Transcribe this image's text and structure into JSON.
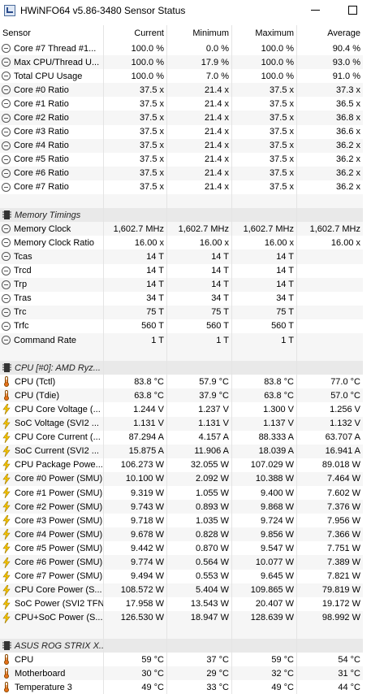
{
  "window": {
    "title": "HWiNFO64 v5.86-3480 Sensor Status"
  },
  "columns": [
    "Sensor",
    "Current",
    "Minimum",
    "Maximum",
    "Average"
  ],
  "rows": [
    {
      "type": "item",
      "icon": "clock-icon",
      "name": "Core #7 Thread #1...",
      "cur": "100.0 %",
      "min": "0.0 %",
      "max": "100.0 %",
      "avg": "90.4 %"
    },
    {
      "type": "item",
      "icon": "clock-icon",
      "name": "Max CPU/Thread U...",
      "cur": "100.0 %",
      "min": "17.9 %",
      "max": "100.0 %",
      "avg": "93.0 %"
    },
    {
      "type": "item",
      "icon": "clock-icon",
      "name": "Total CPU Usage",
      "cur": "100.0 %",
      "min": "7.0 %",
      "max": "100.0 %",
      "avg": "91.0 %"
    },
    {
      "type": "item",
      "icon": "clock-icon",
      "name": "Core #0 Ratio",
      "cur": "37.5 x",
      "min": "21.4 x",
      "max": "37.5 x",
      "avg": "37.3 x"
    },
    {
      "type": "item",
      "icon": "clock-icon",
      "name": "Core #1 Ratio",
      "cur": "37.5 x",
      "min": "21.4 x",
      "max": "37.5 x",
      "avg": "36.5 x"
    },
    {
      "type": "item",
      "icon": "clock-icon",
      "name": "Core #2 Ratio",
      "cur": "37.5 x",
      "min": "21.4 x",
      "max": "37.5 x",
      "avg": "36.8 x"
    },
    {
      "type": "item",
      "icon": "clock-icon",
      "name": "Core #3 Ratio",
      "cur": "37.5 x",
      "min": "21.4 x",
      "max": "37.5 x",
      "avg": "36.6 x"
    },
    {
      "type": "item",
      "icon": "clock-icon",
      "name": "Core #4 Ratio",
      "cur": "37.5 x",
      "min": "21.4 x",
      "max": "37.5 x",
      "avg": "36.2 x"
    },
    {
      "type": "item",
      "icon": "clock-icon",
      "name": "Core #5 Ratio",
      "cur": "37.5 x",
      "min": "21.4 x",
      "max": "37.5 x",
      "avg": "36.2 x"
    },
    {
      "type": "item",
      "icon": "clock-icon",
      "name": "Core #6 Ratio",
      "cur": "37.5 x",
      "min": "21.4 x",
      "max": "37.5 x",
      "avg": "36.2 x"
    },
    {
      "type": "item",
      "icon": "clock-icon",
      "name": "Core #7 Ratio",
      "cur": "37.5 x",
      "min": "21.4 x",
      "max": "37.5 x",
      "avg": "36.2 x"
    },
    {
      "type": "blank"
    },
    {
      "type": "group",
      "icon": "chip-icon",
      "name": "Memory Timings"
    },
    {
      "type": "item",
      "icon": "clock-icon",
      "name": "Memory Clock",
      "cur": "1,602.7 MHz",
      "min": "1,602.7 MHz",
      "max": "1,602.7 MHz",
      "avg": "1,602.7 MHz"
    },
    {
      "type": "item",
      "icon": "clock-icon",
      "name": "Memory Clock Ratio",
      "cur": "16.00 x",
      "min": "16.00 x",
      "max": "16.00 x",
      "avg": "16.00 x"
    },
    {
      "type": "item",
      "icon": "clock-icon",
      "name": "Tcas",
      "cur": "14 T",
      "min": "14 T",
      "max": "14 T",
      "avg": ""
    },
    {
      "type": "item",
      "icon": "clock-icon",
      "name": "Trcd",
      "cur": "14 T",
      "min": "14 T",
      "max": "14 T",
      "avg": ""
    },
    {
      "type": "item",
      "icon": "clock-icon",
      "name": "Trp",
      "cur": "14 T",
      "min": "14 T",
      "max": "14 T",
      "avg": ""
    },
    {
      "type": "item",
      "icon": "clock-icon",
      "name": "Tras",
      "cur": "34 T",
      "min": "34 T",
      "max": "34 T",
      "avg": ""
    },
    {
      "type": "item",
      "icon": "clock-icon",
      "name": "Trc",
      "cur": "75 T",
      "min": "75 T",
      "max": "75 T",
      "avg": ""
    },
    {
      "type": "item",
      "icon": "clock-icon",
      "name": "Trfc",
      "cur": "560 T",
      "min": "560 T",
      "max": "560 T",
      "avg": ""
    },
    {
      "type": "item",
      "icon": "clock-icon",
      "name": "Command Rate",
      "cur": "1 T",
      "min": "1 T",
      "max": "1 T",
      "avg": ""
    },
    {
      "type": "blank"
    },
    {
      "type": "group",
      "icon": "chip-icon",
      "name": "CPU [#0]: AMD Ryz..."
    },
    {
      "type": "item",
      "icon": "thermometer-icon",
      "name": "CPU (Tctl)",
      "cur": "83.8 °C",
      "min": "57.9 °C",
      "max": "83.8 °C",
      "avg": "77.0 °C"
    },
    {
      "type": "item",
      "icon": "thermometer-icon",
      "name": "CPU (Tdie)",
      "cur": "63.8 °C",
      "min": "37.9 °C",
      "max": "63.8 °C",
      "avg": "57.0 °C"
    },
    {
      "type": "item",
      "icon": "lightning-icon",
      "name": "CPU Core Voltage (...",
      "cur": "1.244 V",
      "min": "1.237 V",
      "max": "1.300 V",
      "avg": "1.256 V"
    },
    {
      "type": "item",
      "icon": "lightning-icon",
      "name": "SoC Voltage (SVI2 ...",
      "cur": "1.131 V",
      "min": "1.131 V",
      "max": "1.137 V",
      "avg": "1.132 V"
    },
    {
      "type": "item",
      "icon": "lightning-icon",
      "name": "CPU Core Current (...",
      "cur": "87.294 A",
      "min": "4.157 A",
      "max": "88.333 A",
      "avg": "63.707 A"
    },
    {
      "type": "item",
      "icon": "lightning-icon",
      "name": "SoC Current (SVI2 ...",
      "cur": "15.875 A",
      "min": "11.906 A",
      "max": "18.039 A",
      "avg": "16.941 A"
    },
    {
      "type": "item",
      "icon": "lightning-icon",
      "name": "CPU Package Powe...",
      "cur": "106.273 W",
      "min": "32.055 W",
      "max": "107.029 W",
      "avg": "89.018 W"
    },
    {
      "type": "item",
      "icon": "lightning-icon",
      "name": "Core #0 Power (SMU)",
      "cur": "10.100 W",
      "min": "2.092 W",
      "max": "10.388 W",
      "avg": "7.464 W"
    },
    {
      "type": "item",
      "icon": "lightning-icon",
      "name": "Core #1 Power (SMU)",
      "cur": "9.319 W",
      "min": "1.055 W",
      "max": "9.400 W",
      "avg": "7.602 W"
    },
    {
      "type": "item",
      "icon": "lightning-icon",
      "name": "Core #2 Power (SMU)",
      "cur": "9.743 W",
      "min": "0.893 W",
      "max": "9.868 W",
      "avg": "7.376 W"
    },
    {
      "type": "item",
      "icon": "lightning-icon",
      "name": "Core #3 Power (SMU)",
      "cur": "9.718 W",
      "min": "1.035 W",
      "max": "9.724 W",
      "avg": "7.956 W"
    },
    {
      "type": "item",
      "icon": "lightning-icon",
      "name": "Core #4 Power (SMU)",
      "cur": "9.678 W",
      "min": "0.828 W",
      "max": "9.856 W",
      "avg": "7.366 W"
    },
    {
      "type": "item",
      "icon": "lightning-icon",
      "name": "Core #5 Power (SMU)",
      "cur": "9.442 W",
      "min": "0.870 W",
      "max": "9.547 W",
      "avg": "7.751 W"
    },
    {
      "type": "item",
      "icon": "lightning-icon",
      "name": "Core #6 Power (SMU)",
      "cur": "9.774 W",
      "min": "0.564 W",
      "max": "10.077 W",
      "avg": "7.389 W"
    },
    {
      "type": "item",
      "icon": "lightning-icon",
      "name": "Core #7 Power (SMU)",
      "cur": "9.494 W",
      "min": "0.553 W",
      "max": "9.645 W",
      "avg": "7.821 W"
    },
    {
      "type": "item",
      "icon": "lightning-icon",
      "name": "CPU Core Power (S...",
      "cur": "108.572 W",
      "min": "5.404 W",
      "max": "109.865 W",
      "avg": "79.819 W"
    },
    {
      "type": "item",
      "icon": "lightning-icon",
      "name": "SoC Power (SVI2 TFN)",
      "cur": "17.958 W",
      "min": "13.543 W",
      "max": "20.407 W",
      "avg": "19.172 W"
    },
    {
      "type": "item",
      "icon": "lightning-icon",
      "name": "CPU+SoC Power (S...",
      "cur": "126.530 W",
      "min": "18.947 W",
      "max": "128.639 W",
      "avg": "98.992 W"
    },
    {
      "type": "blank"
    },
    {
      "type": "group",
      "icon": "chip-icon",
      "name": "ASUS ROG STRIX X..."
    },
    {
      "type": "item",
      "icon": "thermometer-icon",
      "name": "CPU",
      "cur": "59 °C",
      "min": "37 °C",
      "max": "59 °C",
      "avg": "54 °C"
    },
    {
      "type": "item",
      "icon": "thermometer-icon",
      "name": "Motherboard",
      "cur": "30 °C",
      "min": "29 °C",
      "max": "32 °C",
      "avg": "31 °C"
    },
    {
      "type": "item",
      "icon": "thermometer-icon",
      "name": "Temperature 3",
      "cur": "49 °C",
      "min": "33 °C",
      "max": "49 °C",
      "avg": "44 °C"
    }
  ]
}
